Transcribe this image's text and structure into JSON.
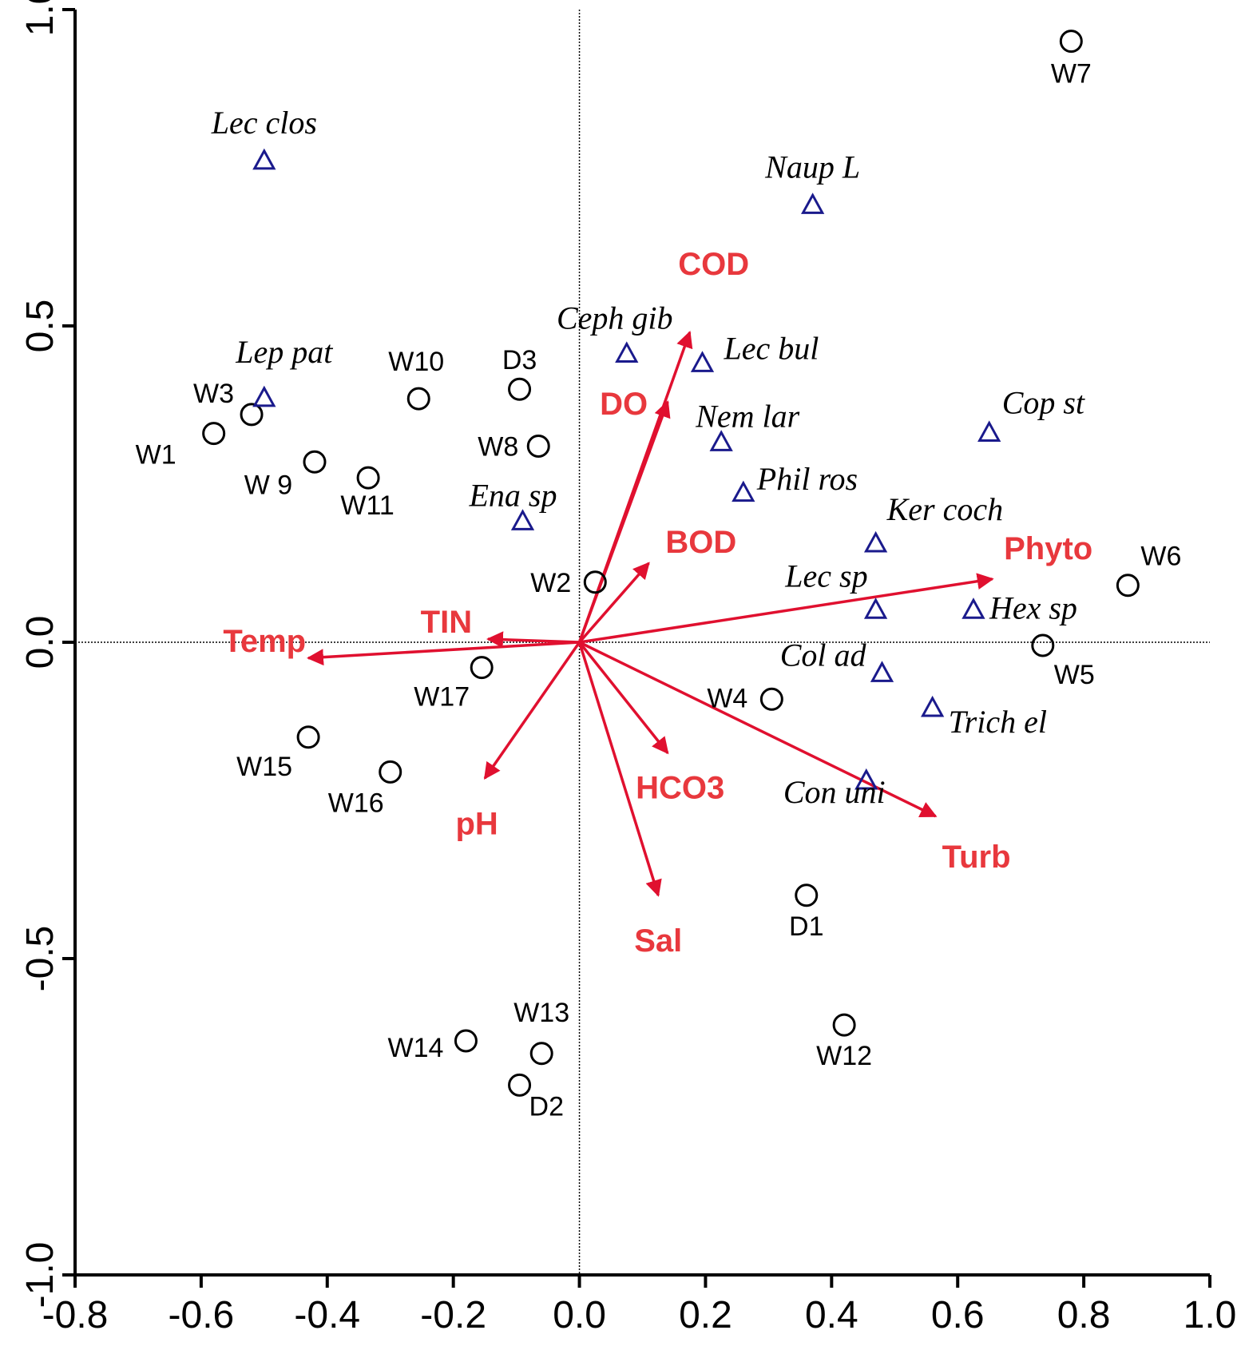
{
  "chart_data": {
    "type": "scatter",
    "title": "",
    "xlabel": "",
    "ylabel": "",
    "xlim": [
      -0.8,
      1.0
    ],
    "ylim": [
      -1.0,
      1.0
    ],
    "x_ticks": [
      "-0.8",
      "-0.6",
      "-0.4",
      "-0.2",
      "0.0",
      "0.2",
      "0.4",
      "0.6",
      "0.8",
      "1.0"
    ],
    "y_ticks": [
      "-1.0",
      "-0.5",
      "0.0",
      "0.5",
      "1.0"
    ],
    "grid": false,
    "zero_lines": true,
    "colors": {
      "sites": "#000000",
      "species": "#1a1a8c",
      "env": "#e0102f",
      "env_label": "#e8383d"
    },
    "series": [
      {
        "kind": "sites",
        "marker": "circle",
        "points": [
          {
            "label": "W1",
            "x": -0.58,
            "y": 0.33
          },
          {
            "label": "W2",
            "x": 0.025,
            "y": 0.095
          },
          {
            "label": "W3",
            "x": -0.52,
            "y": 0.36
          },
          {
            "label": "W4",
            "x": 0.305,
            "y": -0.09
          },
          {
            "label": "W5",
            "x": 0.735,
            "y": -0.005
          },
          {
            "label": "W6",
            "x": 0.87,
            "y": 0.09
          },
          {
            "label": "W7",
            "x": 0.78,
            "y": 0.95
          },
          {
            "label": "W8",
            "x": -0.065,
            "y": 0.31
          },
          {
            "label": "W 9",
            "x": -0.42,
            "y": 0.285
          },
          {
            "label": "W10",
            "x": -0.255,
            "y": 0.385
          },
          {
            "label": "W11",
            "x": -0.335,
            "y": 0.26
          },
          {
            "label": "W12",
            "x": 0.42,
            "y": -0.605
          },
          {
            "label": "W13",
            "x": -0.06,
            "y": -0.65
          },
          {
            "label": "W14",
            "x": -0.18,
            "y": -0.63
          },
          {
            "label": "W15",
            "x": -0.43,
            "y": -0.15
          },
          {
            "label": "W16",
            "x": -0.3,
            "y": -0.205
          },
          {
            "label": "W17",
            "x": -0.155,
            "y": -0.04
          },
          {
            "label": "D1",
            "x": 0.36,
            "y": -0.4
          },
          {
            "label": "D2",
            "x": -0.095,
            "y": -0.7
          },
          {
            "label": "D3",
            "x": -0.095,
            "y": 0.4
          }
        ]
      },
      {
        "kind": "species",
        "marker": "triangle",
        "points": [
          {
            "label": "Lec clos",
            "x": -0.5,
            "y": 0.76
          },
          {
            "label": "Lep pat",
            "x": -0.5,
            "y": 0.385
          },
          {
            "label": "Naup L",
            "x": 0.37,
            "y": 0.69
          },
          {
            "label": "Ceph gib",
            "x": 0.075,
            "y": 0.455
          },
          {
            "label": "Lec bul",
            "x": 0.195,
            "y": 0.44
          },
          {
            "label": "Nem lar",
            "x": 0.225,
            "y": 0.315
          },
          {
            "label": "Phil ros",
            "x": 0.26,
            "y": 0.235
          },
          {
            "label": "Cop st",
            "x": 0.65,
            "y": 0.33
          },
          {
            "label": "Ena sp",
            "x": -0.09,
            "y": 0.19
          },
          {
            "label": "Ker coch",
            "x": 0.47,
            "y": 0.155
          },
          {
            "label": "Lec sp",
            "x": 0.47,
            "y": 0.05
          },
          {
            "label": "Hex sp",
            "x": 0.625,
            "y": 0.05
          },
          {
            "label": "Col ad",
            "x": 0.48,
            "y": -0.05
          },
          {
            "label": "Trich el",
            "x": 0.56,
            "y": -0.105
          },
          {
            "label": "Con uni",
            "x": 0.455,
            "y": -0.22
          }
        ]
      },
      {
        "kind": "environmental",
        "marker": "arrow",
        "points": [
          {
            "label": "COD",
            "x": 0.175,
            "y": 0.49
          },
          {
            "label": "DO",
            "x": 0.14,
            "y": 0.38
          },
          {
            "label": "BOD",
            "x": 0.11,
            "y": 0.125
          },
          {
            "label": "Phyto",
            "x": 0.655,
            "y": 0.1
          },
          {
            "label": "TIN",
            "x": -0.145,
            "y": 0.005
          },
          {
            "label": "Temp",
            "x": -0.43,
            "y": -0.025
          },
          {
            "label": "pH",
            "x": -0.15,
            "y": -0.215
          },
          {
            "label": "HCO3",
            "x": 0.14,
            "y": -0.175
          },
          {
            "label": "Sal",
            "x": 0.125,
            "y": -0.4
          },
          {
            "label": "Turb",
            "x": 0.565,
            "y": -0.275
          }
        ]
      }
    ]
  }
}
